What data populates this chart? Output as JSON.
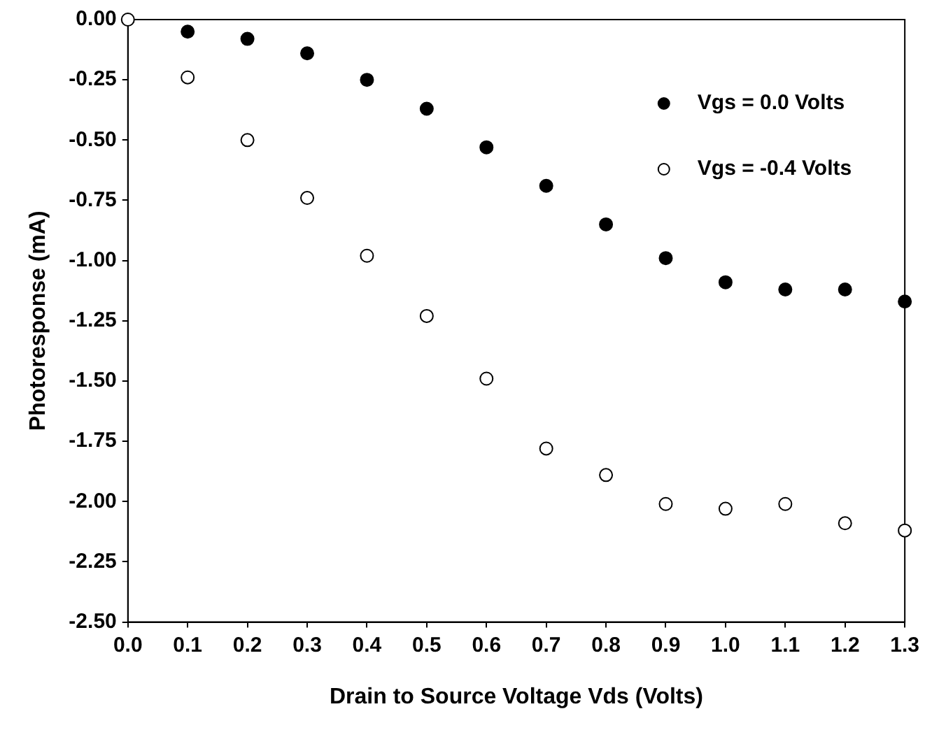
{
  "chart_data": {
    "type": "scatter",
    "xlabel": "Drain to Source Voltage Vds (Volts)",
    "ylabel": "Photoresponse (mA)",
    "xlim": [
      0,
      1.3
    ],
    "xticks": [
      {
        "value": 0,
        "label": "0.0"
      },
      0.1,
      0.2,
      0.3,
      0.4,
      0.5,
      0.6,
      0.7,
      0.8,
      0.9,
      {
        "value": 1,
        "label": "1.0"
      },
      1.1,
      1.2,
      1.3
    ],
    "ylim": [
      -2.5,
      0
    ],
    "yticks": [
      {
        "value": -2.5,
        "label": "-2.50"
      },
      {
        "value": -2.25,
        "label": "-2.25"
      },
      {
        "value": -2,
        "label": "-2.00"
      },
      {
        "value": -1.75,
        "label": "-1.75"
      },
      {
        "value": -1.5,
        "label": "-1.50"
      },
      {
        "value": -1.25,
        "label": "-1.25"
      },
      {
        "value": -1,
        "label": "-1.00"
      },
      {
        "value": -0.75,
        "label": "-0.75"
      },
      {
        "value": -0.5,
        "label": "-0.50"
      },
      {
        "value": -0.25,
        "label": "-0.25"
      },
      {
        "value": 0,
        "label": "0.00"
      }
    ],
    "grid": false,
    "legend": "top right",
    "marker": "circle",
    "series": [
      {
        "name": "Vgs = 0.0 Volts",
        "color": "#000000",
        "x": [
          0.1,
          0.2,
          0.3,
          0.4,
          0.5,
          0.6,
          0.7,
          0.8,
          0.9,
          1.0,
          1.1,
          1.2,
          1.3
        ],
        "values": [
          -0.05,
          -0.08,
          -0.14,
          -0.25,
          -0.37,
          -0.53,
          -0.69,
          -0.85,
          -0.99,
          -1.09,
          -1.12,
          -1.12,
          -1.17
        ]
      },
      {
        "name": "Vgs = -0.4 Volts",
        "color": "#ffffff",
        "x": [
          0,
          0.1,
          0.2,
          0.3,
          0.4,
          0.5,
          0.6,
          0.7,
          0.8,
          0.9,
          1.0,
          1.1,
          1.2,
          1.3
        ],
        "values": [
          0,
          -0.24,
          -0.5,
          -0.74,
          -0.98,
          -1.23,
          -1.49,
          -1.78,
          -1.89,
          -2.01,
          -2.03,
          -2.01,
          -2.09,
          -2.12
        ]
      }
    ]
  }
}
